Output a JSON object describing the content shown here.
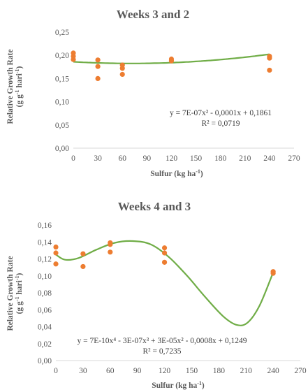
{
  "chart_data": [
    {
      "type": "scatter",
      "title": "Weeks 3 and 2",
      "xlabel": "Sulfur (kg ha",
      "xlabel_sup": "-1",
      "xlabel_end": ")",
      "ylabel_line1": "Relative Growth Rate",
      "ylabel_line2_a": "(g g",
      "ylabel_line2_sup1": "-1",
      "ylabel_line2_b": " hari",
      "ylabel_line2_sup2": "-1",
      "ylabel_line2_c": ")",
      "xlim": [
        0,
        270
      ],
      "ylim": [
        0,
        0.25
      ],
      "xticks": [
        0,
        30,
        60,
        90,
        120,
        150,
        180,
        210,
        240,
        270
      ],
      "yticks": [
        0,
        0.05,
        0.1,
        0.15,
        0.2,
        0.25
      ],
      "xtick_labels": [
        "0",
        "30",
        "60",
        "90",
        "120",
        "150",
        "180",
        "210",
        "240",
        "270"
      ],
      "ytick_labels": [
        "0,00",
        "0,05",
        "0,10",
        "0,15",
        "0,20",
        "0,25"
      ],
      "points": [
        {
          "x": 0,
          "y": 0.205
        },
        {
          "x": 0,
          "y": 0.198
        },
        {
          "x": 0,
          "y": 0.191
        },
        {
          "x": 30,
          "y": 0.19
        },
        {
          "x": 30,
          "y": 0.176
        },
        {
          "x": 30,
          "y": 0.15
        },
        {
          "x": 60,
          "y": 0.179
        },
        {
          "x": 60,
          "y": 0.172
        },
        {
          "x": 60,
          "y": 0.159
        },
        {
          "x": 120,
          "y": 0.192
        },
        {
          "x": 120,
          "y": 0.188
        },
        {
          "x": 240,
          "y": 0.198
        },
        {
          "x": 240,
          "y": 0.194
        },
        {
          "x": 240,
          "y": 0.168
        }
      ],
      "trendline": {
        "type": "polynomial",
        "coefficients": [
          0.1861,
          -0.0001,
          7e-07
        ],
        "x_range": [
          0,
          240
        ]
      },
      "equation": "y = 7E-07x² - 0,0001x + 0,1861",
      "r_squared": "R² = 0,0719",
      "point_color": "#ED7D31",
      "line_color": "#70AD47"
    },
    {
      "type": "scatter",
      "title": "Weeks 4 and 3",
      "xlabel": "Sulfur (kg ha",
      "xlabel_sup": "-1",
      "xlabel_end": ")",
      "ylabel_line1": "Relative Growth Rate",
      "ylabel_line2_a": "(g g",
      "ylabel_line2_sup1": "-1",
      "ylabel_line2_b": " hari",
      "ylabel_line2_sup2": "-1",
      "ylabel_line2_c": ")",
      "xlim": [
        0,
        270
      ],
      "ylim": [
        0,
        0.16
      ],
      "xticks": [
        0,
        30,
        60,
        90,
        120,
        150,
        180,
        210,
        240,
        270
      ],
      "yticks": [
        0,
        0.02,
        0.04,
        0.06,
        0.08,
        0.1,
        0.12,
        0.14,
        0.16
      ],
      "xtick_labels": [
        "0",
        "30",
        "60",
        "90",
        "120",
        "150",
        "180",
        "210",
        "240",
        "270"
      ],
      "ytick_labels": [
        "0,00",
        "0,02",
        "0,04",
        "0,06",
        "0,08",
        "0,10",
        "0,12",
        "0,14",
        "0,16"
      ],
      "points": [
        {
          "x": 0,
          "y": 0.134
        },
        {
          "x": 0,
          "y": 0.127
        },
        {
          "x": 0,
          "y": 0.114
        },
        {
          "x": 30,
          "y": 0.126
        },
        {
          "x": 30,
          "y": 0.111
        },
        {
          "x": 60,
          "y": 0.139
        },
        {
          "x": 60,
          "y": 0.137
        },
        {
          "x": 60,
          "y": 0.128
        },
        {
          "x": 120,
          "y": 0.133
        },
        {
          "x": 120,
          "y": 0.127
        },
        {
          "x": 120,
          "y": 0.116
        },
        {
          "x": 240,
          "y": 0.105
        },
        {
          "x": 240,
          "y": 0.103
        }
      ],
      "trendline": {
        "type": "smooth",
        "points": [
          {
            "x": 0,
            "y": 0.125
          },
          {
            "x": 10,
            "y": 0.119
          },
          {
            "x": 25,
            "y": 0.121
          },
          {
            "x": 45,
            "y": 0.131
          },
          {
            "x": 65,
            "y": 0.139
          },
          {
            "x": 85,
            "y": 0.141
          },
          {
            "x": 105,
            "y": 0.137
          },
          {
            "x": 125,
            "y": 0.122
          },
          {
            "x": 145,
            "y": 0.1
          },
          {
            "x": 165,
            "y": 0.075
          },
          {
            "x": 185,
            "y": 0.052
          },
          {
            "x": 200,
            "y": 0.042
          },
          {
            "x": 212,
            "y": 0.045
          },
          {
            "x": 225,
            "y": 0.065
          },
          {
            "x": 240,
            "y": 0.104
          }
        ]
      },
      "equation": "y = 7E-10x⁴ - 3E-07x³ + 3E-05x² - 0,0008x + 0,1249",
      "r_squared": "R² = 0,7235",
      "point_color": "#ED7D31",
      "line_color": "#70AD47"
    }
  ]
}
